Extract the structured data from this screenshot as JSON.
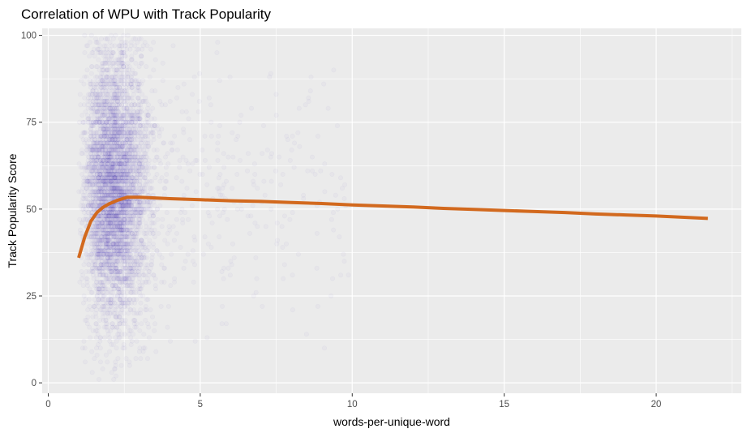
{
  "chart_data": {
    "type": "scatter",
    "title": "Correlation of WPU with Track Popularity",
    "xlabel": "words-per-unique-word",
    "ylabel": "Track Popularity Score",
    "xlim": [
      -0.2,
      22.8
    ],
    "ylim": [
      -3,
      102
    ],
    "x_ticks": [
      0,
      5,
      10,
      15,
      20
    ],
    "x_tick_labels": [
      "0",
      "5",
      "10",
      "15",
      "20"
    ],
    "y_ticks": [
      0,
      25,
      50,
      75,
      100
    ],
    "y_tick_labels": [
      "0",
      "25",
      "50",
      "75",
      "100"
    ],
    "grid": true,
    "panel_background": "#EBEBEB",
    "grid_color": "#FFFFFF",
    "point_color": "#6A5ACD",
    "trend_color": "#D2691E",
    "legend": "none",
    "series": [
      {
        "kind": "trend_line",
        "x": [
          1.0,
          1.2,
          1.4,
          1.6,
          1.8,
          2.0,
          2.3,
          2.6,
          3.0,
          4.0,
          5.0,
          6.0,
          7.0,
          8.0,
          9.0,
          10.0,
          11.0,
          12.0,
          13.0,
          14.0,
          15.0,
          16.0,
          17.0,
          18.0,
          19.0,
          20.0,
          21.0,
          21.7
        ],
        "y": [
          36,
          42,
          46.5,
          49,
          50.5,
          51.5,
          52.6,
          53.4,
          53.4,
          53.0,
          52.7,
          52.4,
          52.2,
          51.9,
          51.6,
          51.2,
          50.9,
          50.6,
          50.2,
          49.9,
          49.6,
          49.3,
          49.0,
          48.6,
          48.3,
          48.0,
          47.6,
          47.3
        ]
      }
    ],
    "scatter_cloud": {
      "x_min": 1.0,
      "x_mode": 2.0,
      "x_tail_max": 10.0,
      "y_min": 1,
      "y_max": 100,
      "y_center": 56,
      "point_count": 5500
    }
  }
}
